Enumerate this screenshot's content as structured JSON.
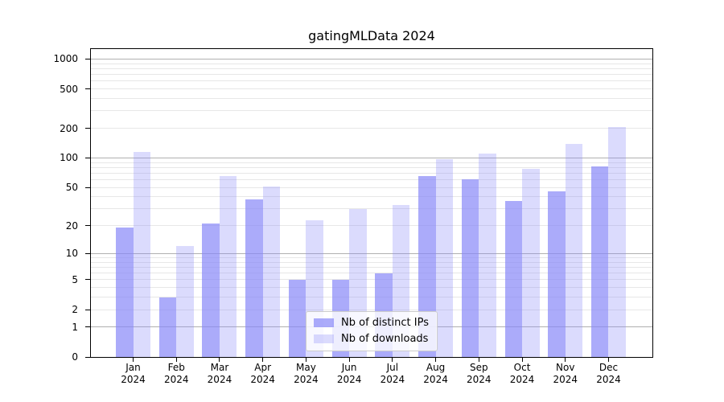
{
  "chart_data": {
    "type": "bar",
    "title": "gatingMLData 2024",
    "categories": [
      "Jan",
      "Feb",
      "Mar",
      "Apr",
      "May",
      "Jun",
      "Jul",
      "Aug",
      "Sep",
      "Oct",
      "Nov",
      "Dec"
    ],
    "category_year": "2024",
    "series": [
      {
        "name": "Nb of distinct IPs",
        "color": "#8888f8",
        "alpha": 0.7,
        "values": [
          19,
          3,
          21,
          38,
          5,
          5,
          6,
          65,
          61,
          36,
          46,
          82
        ]
      },
      {
        "name": "Nb of downloads",
        "color": "#8888f8",
        "alpha": 0.3,
        "values": [
          115,
          12,
          65,
          51,
          23,
          30,
          33,
          97,
          110,
          77,
          140,
          205
        ]
      }
    ],
    "xlabel": "",
    "ylabel": "",
    "y_scale": "log10(1+x)",
    "y_ticks": [
      0,
      1,
      2,
      5,
      10,
      20,
      50,
      100,
      200,
      500,
      1000
    ],
    "ylim": [
      0,
      1261
    ],
    "grid": {
      "on": true,
      "major": [
        1,
        10,
        100,
        1000
      ],
      "minor": [
        2,
        3,
        4,
        5,
        6,
        7,
        8,
        9,
        20,
        30,
        40,
        50,
        60,
        70,
        80,
        90,
        200,
        300,
        400,
        500,
        600,
        700,
        800,
        900
      ],
      "major_color": "#b0b0b0",
      "minor_color": "#e7e7e7"
    },
    "legend_position": "lower center",
    "frame_color": "#000000",
    "background": "#ffffff"
  }
}
